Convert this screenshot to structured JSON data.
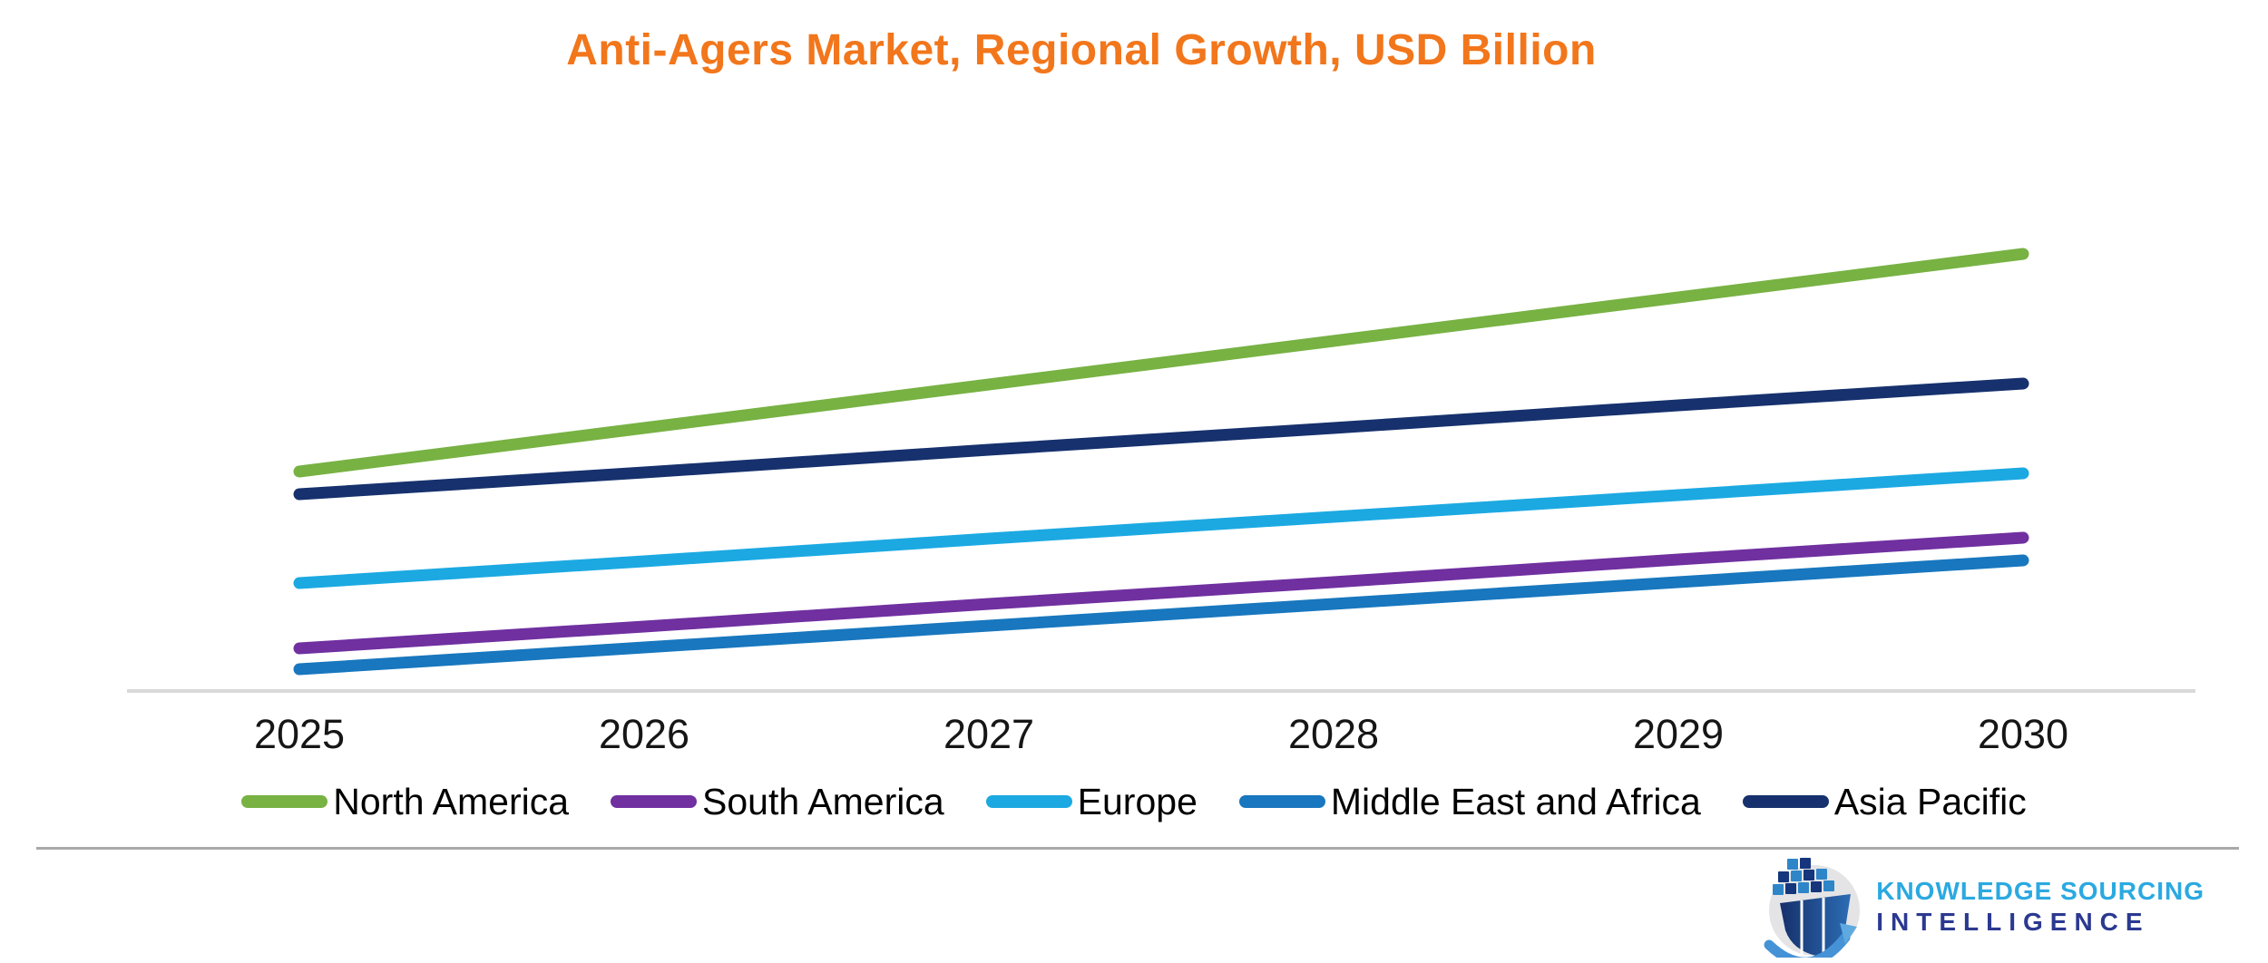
{
  "chart_data": {
    "type": "line",
    "title": "Anti-Agers Market, Regional Growth, USD Billion",
    "title_color": "#F2761B",
    "x": [
      2025,
      2026,
      2027,
      2028,
      2029,
      2030
    ],
    "x_labels": [
      "2025",
      "2026",
      "2027",
      "2028",
      "2029",
      "2030"
    ],
    "series": [
      {
        "name": "North America",
        "color": "#77B243",
        "values": [
          24.2,
          29.0,
          33.8,
          38.6,
          43.4,
          48.2
        ]
      },
      {
        "name": "South America",
        "color": "#7030A0",
        "values": [
          4.7,
          7.1,
          9.6,
          12.0,
          14.5,
          16.9
        ]
      },
      {
        "name": "Europe",
        "color": "#1CA9E2",
        "values": [
          11.9,
          14.3,
          16.8,
          19.2,
          21.6,
          24.0
        ]
      },
      {
        "name": "Middle East and Africa",
        "color": "#1877BE",
        "values": [
          2.4,
          4.8,
          7.2,
          9.6,
          12.0,
          14.4
        ]
      },
      {
        "name": "Asia Pacific",
        "color": "#16316D",
        "values": [
          21.7,
          24.1,
          26.6,
          29.0,
          31.5,
          33.9
        ]
      }
    ],
    "xlabel": "",
    "ylabel": "",
    "ylim": [
      0,
      55
    ],
    "y_axis_visible": false,
    "gridlines": false,
    "legend_position": "bottom",
    "axis_line_color": "#D9D9D9",
    "note": "Y axis unlabeled in source; values estimated from line positions"
  },
  "footer_logo": {
    "line1": "KNOWLEDGE SOURCING",
    "line2": "INTELLIGENCE",
    "line1_color": "#2BA9E0",
    "line2_color": "#2B3990"
  }
}
